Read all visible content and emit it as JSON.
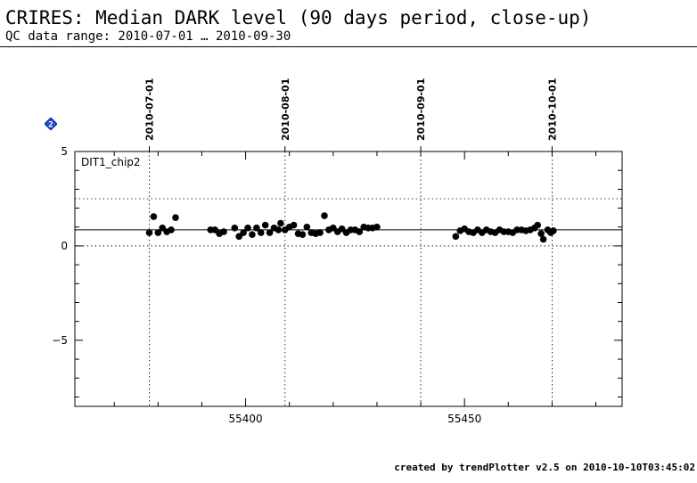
{
  "header": {
    "title": "CRIRES: Median DARK level (90 days period, close-up)",
    "subtitle": "QC data range: 2010-07-01 … 2010-09-30"
  },
  "footer": {
    "text": "created by trendPlotter v2.5 on 2010-10-10T03:45:02"
  },
  "badge": {
    "label": "2",
    "color": "#1f4fd8"
  },
  "chart_data": {
    "type": "scatter",
    "panel_label": "DIT1_chip2",
    "xlim": [
      55361,
      55486
    ],
    "ylim": [
      -8.5,
      5
    ],
    "x_ticks": [
      55400,
      55450
    ],
    "y_ticks": [
      5,
      0,
      -5
    ],
    "date_markers": [
      {
        "label": "2010-07-01",
        "x": 55378
      },
      {
        "label": "2010-08-01",
        "x": 55409
      },
      {
        "label": "2010-09-01",
        "x": 55440
      },
      {
        "label": "2010-10-01",
        "x": 55470
      }
    ],
    "reference_lines": {
      "median": 0.85,
      "dotted": [
        2.5,
        0.0
      ]
    },
    "grid": "none",
    "point_color": "#000000",
    "series": [
      {
        "points": [
          [
            55378.0,
            0.7
          ],
          [
            55379.0,
            1.55
          ],
          [
            55380.0,
            0.7
          ],
          [
            55381.0,
            0.95
          ],
          [
            55382.0,
            0.75
          ],
          [
            55383.0,
            0.85
          ],
          [
            55384.0,
            1.5
          ],
          [
            55392.0,
            0.85
          ],
          [
            55393.0,
            0.85
          ],
          [
            55394.0,
            0.65
          ],
          [
            55395.0,
            0.75
          ],
          [
            55397.5,
            0.95
          ],
          [
            55398.5,
            0.5
          ],
          [
            55399.5,
            0.7
          ],
          [
            55400.5,
            0.95
          ],
          [
            55401.5,
            0.6
          ],
          [
            55402.5,
            0.95
          ],
          [
            55403.5,
            0.7
          ],
          [
            55404.5,
            1.1
          ],
          [
            55405.5,
            0.7
          ],
          [
            55406.5,
            0.95
          ],
          [
            55407.5,
            0.85
          ],
          [
            55408.0,
            1.2
          ],
          [
            55409.0,
            0.85
          ],
          [
            55410.0,
            1.0
          ],
          [
            55411.0,
            1.1
          ],
          [
            55412.0,
            0.65
          ],
          [
            55413.0,
            0.6
          ],
          [
            55414.0,
            1.0
          ],
          [
            55415.0,
            0.7
          ],
          [
            55416.0,
            0.65
          ],
          [
            55417.0,
            0.7
          ],
          [
            55418.0,
            1.6
          ],
          [
            55419.0,
            0.85
          ],
          [
            55420.0,
            0.95
          ],
          [
            55421.0,
            0.75
          ],
          [
            55422.0,
            0.9
          ],
          [
            55423.0,
            0.7
          ],
          [
            55424.0,
            0.85
          ],
          [
            55425.0,
            0.85
          ],
          [
            55426.0,
            0.75
          ],
          [
            55427.0,
            1.0
          ],
          [
            55428.0,
            0.95
          ],
          [
            55429.0,
            0.95
          ],
          [
            55430.0,
            1.0
          ],
          [
            55448.0,
            0.5
          ],
          [
            55449.0,
            0.8
          ],
          [
            55450.0,
            0.9
          ],
          [
            55451.0,
            0.75
          ],
          [
            55452.0,
            0.7
          ],
          [
            55453.0,
            0.85
          ],
          [
            55454.0,
            0.7
          ],
          [
            55455.0,
            0.85
          ],
          [
            55456.0,
            0.75
          ],
          [
            55457.0,
            0.7
          ],
          [
            55458.0,
            0.85
          ],
          [
            55459.0,
            0.75
          ],
          [
            55460.0,
            0.75
          ],
          [
            55461.0,
            0.7
          ],
          [
            55462.0,
            0.85
          ],
          [
            55463.0,
            0.85
          ],
          [
            55464.0,
            0.8
          ],
          [
            55465.0,
            0.85
          ],
          [
            55466.0,
            0.95
          ],
          [
            55466.7,
            1.1
          ],
          [
            55467.5,
            0.65
          ],
          [
            55468.0,
            0.35
          ],
          [
            55469.0,
            0.85
          ],
          [
            55469.7,
            0.7
          ],
          [
            55470.3,
            0.8
          ]
        ]
      }
    ]
  }
}
